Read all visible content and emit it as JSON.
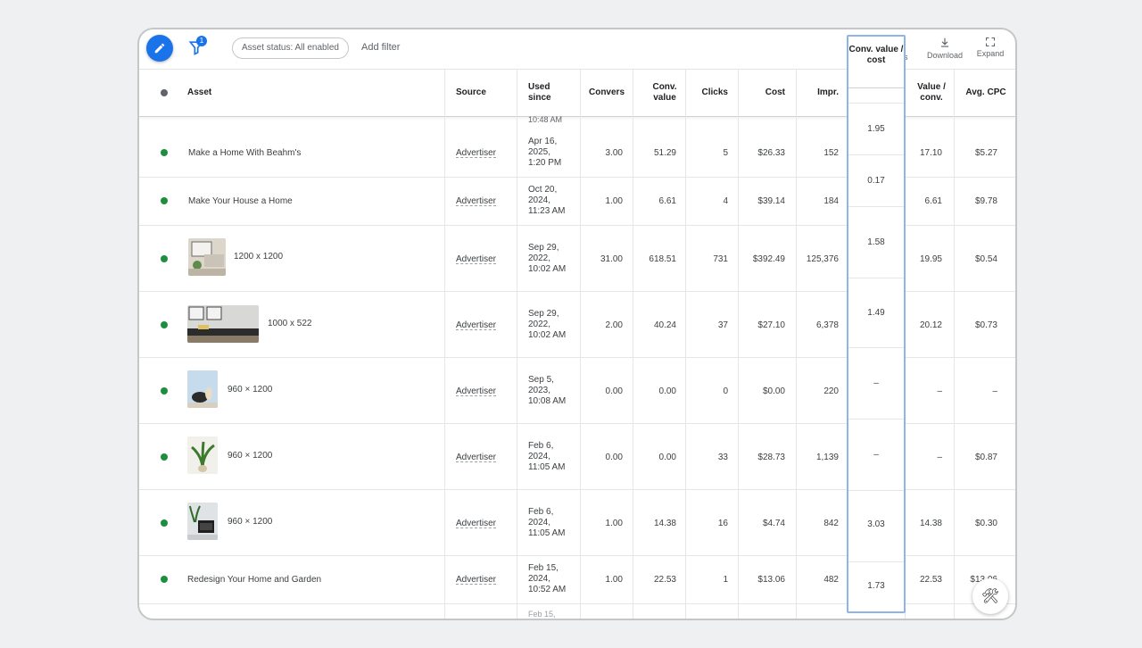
{
  "toolbar": {
    "filter_count": "1",
    "status_chip": "Asset status: All enabled",
    "add_filter": "Add filter",
    "partial_label": "s",
    "download": "Download",
    "expand": "Expand"
  },
  "columns": {
    "asset": "Asset",
    "source": "Source",
    "used_since": "Used since",
    "conversions": "Convers",
    "conv_value": "Conv. value",
    "clicks": "Clicks",
    "cost": "Cost",
    "impr": "Impr.",
    "conv_value_cost": "Conv. value / cost",
    "value_conv": "Value / conv.",
    "avg_cpc": "Avg. CPC"
  },
  "top_cut_text": "10:48 AM",
  "bottom_cut_text": "Feb 15,",
  "rows": [
    {
      "asset": "Make a Home With Beahm's",
      "source": "Advertiser",
      "date": [
        "Apr 16,",
        "2025,",
        "1:20 PM"
      ],
      "conversions": "3.00",
      "conv_value": "51.29",
      "clicks": "5",
      "cost": "$26.33",
      "impr": "152",
      "value_conv": "17.10",
      "avg_cpc": "$5.27"
    },
    {
      "asset": "Make Your House a Home",
      "source": "Advertiser",
      "date": [
        "Oct 20,",
        "2024,",
        "11:23 AM"
      ],
      "conversions": "1.00",
      "conv_value": "6.61",
      "clicks": "4",
      "cost": "$39.14",
      "impr": "184",
      "value_conv": "6.61",
      "avg_cpc": "$9.78"
    },
    {
      "asset": "1200 x 1200",
      "source": "Advertiser",
      "date": [
        "Sep 29,",
        "2022,",
        "10:02 AM"
      ],
      "conversions": "31.00",
      "conv_value": "618.51",
      "clicks": "731",
      "cost": "$392.49",
      "impr": "125,376",
      "value_conv": "19.95",
      "avg_cpc": "$0.54"
    },
    {
      "asset": "1000 x 522",
      "source": "Advertiser",
      "date": [
        "Sep 29,",
        "2022,",
        "10:02 AM"
      ],
      "conversions": "2.00",
      "conv_value": "40.24",
      "clicks": "37",
      "cost": "$27.10",
      "impr": "6,378",
      "value_conv": "20.12",
      "avg_cpc": "$0.73"
    },
    {
      "asset": "960 × 1200",
      "source": "Advertiser",
      "date": [
        "Sep 5,",
        "2023,",
        "10:08 AM"
      ],
      "conversions": "0.00",
      "conv_value": "0.00",
      "clicks": "0",
      "cost": "$0.00",
      "impr": "220",
      "value_conv": "–",
      "avg_cpc": "–"
    },
    {
      "asset": "960 × 1200",
      "source": "Advertiser",
      "date": [
        "Feb 6,",
        "2024,",
        "11:05 AM"
      ],
      "conversions": "0.00",
      "conv_value": "0.00",
      "clicks": "33",
      "cost": "$28.73",
      "impr": "1,139",
      "value_conv": "–",
      "avg_cpc": "$0.87"
    },
    {
      "asset": "960 × 1200",
      "source": "Advertiser",
      "date": [
        "Feb 6,",
        "2024,",
        "11:05 AM"
      ],
      "conversions": "1.00",
      "conv_value": "14.38",
      "clicks": "16",
      "cost": "$4.74",
      "impr": "842",
      "value_conv": "14.38",
      "avg_cpc": "$0.30"
    },
    {
      "asset": "Redesign Your Home and Garden",
      "source": "Advertiser",
      "date": [
        "Feb 15,",
        "2024,",
        "10:52 AM"
      ],
      "conversions": "1.00",
      "conv_value": "22.53",
      "clicks": "1",
      "cost": "$13.06",
      "impr": "482",
      "value_conv": "22.53",
      "avg_cpc": "$13.06"
    }
  ],
  "highlight_values": [
    "1.95",
    "0.17",
    "1.58",
    "1.49",
    "–",
    "–",
    "3.03",
    "1.73"
  ],
  "colors": {
    "accent": "#1a73e8",
    "status_enabled": "#1e8e3e",
    "highlight_border": "#8fb4e8"
  },
  "icons": {
    "edit": "pencil-icon",
    "filter": "filter-icon",
    "download": "download-icon",
    "expand": "expand-icon",
    "tools": "tools-icon"
  }
}
